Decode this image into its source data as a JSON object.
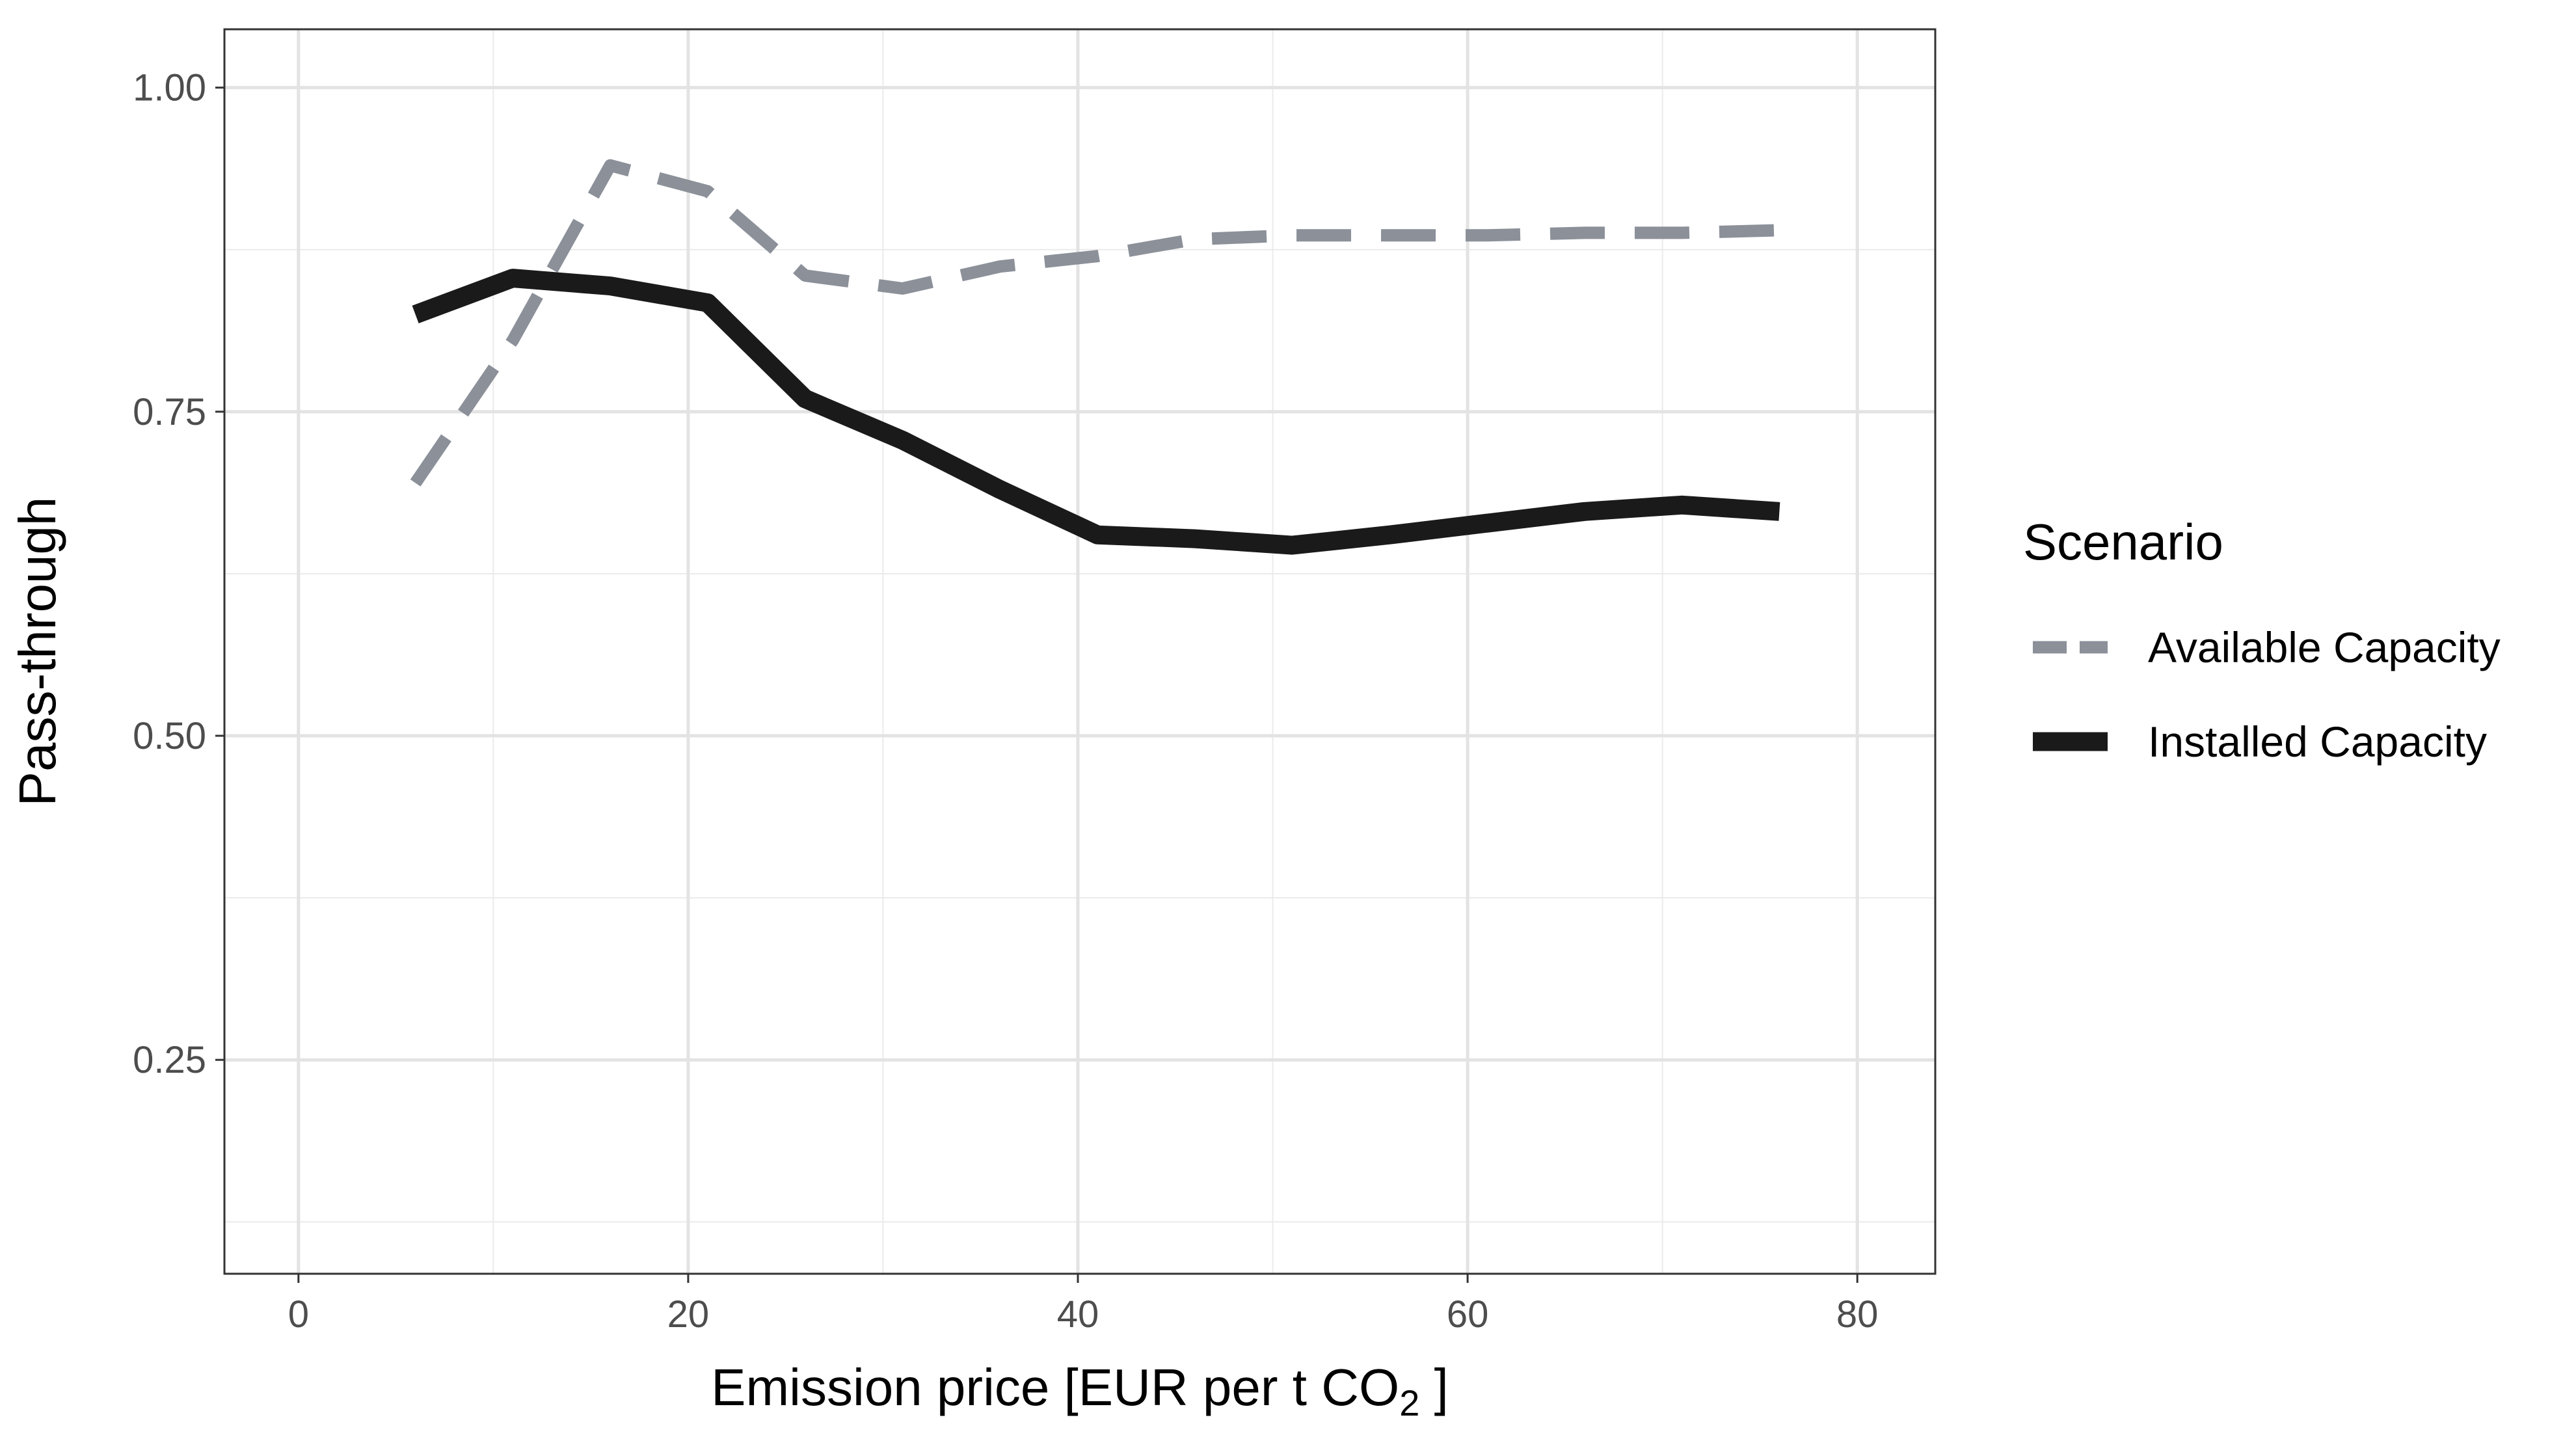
{
  "chart_data": {
    "type": "line",
    "title": "",
    "xlabel_prefix": "Emission price [EUR per t CO",
    "xlabel_sub": "2",
    "xlabel_suffix": " ]",
    "ylabel": "Pass-through",
    "xlim": [
      -3.8,
      84
    ],
    "ylim": [
      0.085,
      1.045
    ],
    "x_ticks": [
      0,
      20,
      40,
      60,
      80
    ],
    "x_tick_labels": [
      "0",
      "20",
      "40",
      "60",
      "80"
    ],
    "x_minor_ticks": [
      10,
      30,
      50,
      70
    ],
    "y_ticks": [
      0.25,
      0.5,
      0.75,
      1.0
    ],
    "y_tick_labels": [
      "0.25",
      "0.50",
      "0.75",
      "1.00"
    ],
    "y_minor_ticks": [
      0.125,
      0.375,
      0.625,
      0.875
    ],
    "grid": true,
    "legend": {
      "title": "Scenario",
      "position": "right"
    },
    "series": [
      {
        "name": "Available Capacity",
        "style": "dashed",
        "color": "#8b9099",
        "x": [
          6,
          11,
          16,
          21,
          26,
          31,
          36,
          41,
          46,
          51,
          56,
          61,
          66,
          71,
          76
        ],
        "y": [
          0.695,
          0.805,
          0.94,
          0.92,
          0.855,
          0.845,
          0.862,
          0.87,
          0.883,
          0.886,
          0.886,
          0.886,
          0.888,
          0.888,
          0.89
        ]
      },
      {
        "name": "Installed Capacity",
        "style": "solid",
        "color": "#1a1a1a",
        "x": [
          6,
          11,
          16,
          21,
          26,
          31,
          36,
          41,
          46,
          51,
          56,
          61,
          66,
          71,
          76
        ],
        "y": [
          0.825,
          0.853,
          0.847,
          0.834,
          0.76,
          0.728,
          0.69,
          0.655,
          0.652,
          0.647,
          0.655,
          0.664,
          0.673,
          0.678,
          0.673
        ]
      }
    ]
  }
}
